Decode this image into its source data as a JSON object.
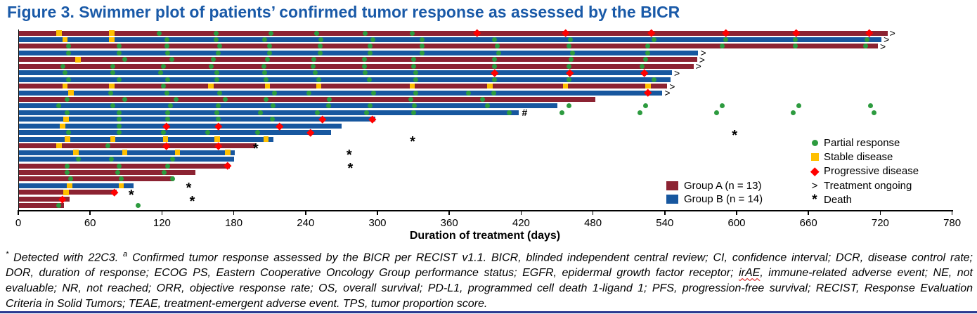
{
  "title": "Figure 3. Swimmer plot of patients’ confirmed tumor response as assessed by the BICR",
  "colors": {
    "title": "#1A5AA8",
    "group_a": "#8C2332",
    "group_b": "#17579F",
    "partial_response": "#2D9B3F",
    "stable_disease": "#FFC000",
    "progressive_disease": "#FF0000",
    "axis": "#000000",
    "bottom_rule": "#2B3990"
  },
  "legend": {
    "groups": [
      {
        "label": "Group A (n = 13)",
        "color_key": "group_a"
      },
      {
        "label": "Group B (n = 14)",
        "color_key": "group_b"
      }
    ],
    "markers": [
      {
        "symbol": "circle",
        "label": "Partial response"
      },
      {
        "symbol": "square",
        "label": "Stable disease"
      },
      {
        "symbol": "diamond",
        "label": "Progressive disease"
      },
      {
        "symbol": ">",
        "label": "Treatment ongoing"
      },
      {
        "symbol": "*",
        "label": "Death"
      }
    ]
  },
  "axis": {
    "label": "Duration of treatment (days)",
    "min": 0,
    "max": 780,
    "tick_interval": 60,
    "ticks": [
      0,
      60,
      120,
      180,
      240,
      300,
      360,
      420,
      480,
      540,
      600,
      660,
      720,
      780
    ]
  },
  "footnote": {
    "line1_sup1": "*",
    "line1_a": " Detected with 22C3. ",
    "line1_sup2": "a",
    "line1_b": " Confirmed tumor response assessed by the BICR per RECIST v1.1. BICR, blinded independent central review; CI, confidence interval; DCR, disease control rate;",
    "line2_a": "DOR, duration of response; ECOG PS, Eastern Cooperative Oncology Group performance status; EGFR, epidermal growth factor receptor; ",
    "line2_irae": "irAE",
    "line2_b": ", immune-related adverse event; NE, not",
    "line3": "evaluable; NR, not reached; ORR, objective response rate; OS, overall survival; PD-L1, programmed cell death 1-ligand 1; PFS, progression-free survival; RECIST, Response Evaluation",
    "line4": "Criteria in Solid Tumors; TEAE, treatment-emergent adverse event. TPS, tumor proportion score."
  },
  "chart_data": {
    "type": "swimmer",
    "title": "Swimmer plot of patients’ confirmed tumor response as assessed by the BICR",
    "xlabel": "Duration of treatment (days)",
    "xlim": [
      0,
      780
    ],
    "x_ticks": [
      0,
      60,
      120,
      180,
      240,
      300,
      360,
      420,
      480,
      540,
      600,
      660,
      720,
      780
    ],
    "legend_position": "right-inside",
    "marker_meanings": {
      "partial_response": "green circle",
      "stable_disease": "yellow square",
      "progressive_disease": "red diamond",
      "ongoing": "> at bar end",
      "death": "* asterisk",
      "hash": "# at bar end"
    },
    "patients": [
      {
        "group": "A",
        "duration_days": 726,
        "ongoing": true,
        "death_day": null,
        "hash_day": null,
        "stable_disease_days": [
          34,
          78
        ],
        "partial_response_days": [
          118,
          165,
          211,
          249,
          290,
          329
        ],
        "progressive_disease_days": [
          383,
          457,
          529,
          591,
          650,
          711
        ]
      },
      {
        "group": "B",
        "duration_days": 721,
        "ongoing": true,
        "death_day": null,
        "hash_day": null,
        "stable_disease_days": [
          39,
          78
        ],
        "partial_response_days": [
          124,
          165,
          206,
          253,
          296,
          337,
          398,
          461,
          531,
          591,
          649,
          709
        ],
        "progressive_disease_days": []
      },
      {
        "group": "A",
        "duration_days": 718,
        "ongoing": true,
        "death_day": null,
        "hash_day": null,
        "stable_disease_days": [],
        "partial_response_days": [
          42,
          84,
          124,
          168,
          210,
          252,
          294,
          337,
          400,
          460,
          526,
          588,
          649,
          708
        ],
        "progressive_disease_days": []
      },
      {
        "group": "B",
        "duration_days": 568,
        "ongoing": true,
        "death_day": null,
        "hash_day": null,
        "stable_disease_days": [],
        "partial_response_days": [
          42,
          84,
          125,
          167,
          210,
          252,
          294,
          337,
          401,
          463,
          526
        ],
        "progressive_disease_days": []
      },
      {
        "group": "A",
        "duration_days": 567,
        "ongoing": true,
        "death_day": null,
        "hash_day": null,
        "stable_disease_days": [
          50
        ],
        "partial_response_days": [
          89,
          128,
          163,
          208,
          247,
          289,
          330,
          398,
          462,
          524
        ],
        "progressive_disease_days": []
      },
      {
        "group": "A",
        "duration_days": 564,
        "ongoing": true,
        "death_day": null,
        "hash_day": null,
        "stable_disease_days": [],
        "partial_response_days": [
          37,
          79,
          121,
          161,
          205,
          246,
          289,
          330,
          398,
          460,
          521
        ],
        "progressive_disease_days": []
      },
      {
        "group": "B",
        "duration_days": 546,
        "ongoing": true,
        "death_day": null,
        "hash_day": null,
        "stable_disease_days": [],
        "partial_response_days": [
          39,
          79,
          119,
          166,
          206,
          248,
          290,
          332
        ],
        "progressive_disease_days": [
          398,
          461,
          523
        ]
      },
      {
        "group": "B",
        "duration_days": 545,
        "ongoing": false,
        "death_day": null,
        "hash_day": null,
        "stable_disease_days": [],
        "partial_response_days": [
          42,
          84,
          125,
          166,
          207,
          251,
          293,
          332,
          398,
          460,
          531
        ],
        "progressive_disease_days": []
      },
      {
        "group": "A",
        "duration_days": 542,
        "ongoing": true,
        "death_day": null,
        "hash_day": null,
        "stable_disease_days": [
          39,
          78,
          161,
          208,
          251,
          329,
          394,
          457,
          526
        ],
        "partial_response_days": [
          121
        ],
        "progressive_disease_days": []
      },
      {
        "group": "B",
        "duration_days": 538,
        "ongoing": true,
        "death_day": null,
        "hash_day": null,
        "stable_disease_days": [
          44
        ],
        "partial_response_days": [
          77,
          124,
          168,
          214,
          243,
          297,
          332,
          376,
          397
        ],
        "progressive_disease_days": [
          526
        ]
      },
      {
        "group": "A",
        "duration_days": 482,
        "ongoing": false,
        "death_day": null,
        "hash_day": null,
        "stable_disease_days": [],
        "partial_response_days": [
          41,
          89,
          132,
          173,
          207,
          260,
          328,
          388
        ],
        "progressive_disease_days": []
      },
      {
        "group": "B",
        "duration_days": 450,
        "ongoing": false,
        "death_day": null,
        "hash_day": null,
        "stable_disease_days": [],
        "partial_response_days": [
          34,
          79,
          127,
          167,
          213,
          259,
          294,
          331,
          392,
          460,
          524,
          588,
          652,
          712
        ],
        "progressive_disease_days": []
      },
      {
        "group": "B",
        "duration_days": 418,
        "ongoing": false,
        "death_day": null,
        "hash_day": 423,
        "stable_disease_days": [],
        "partial_response_days": [
          41,
          84,
          125,
          166,
          202,
          250,
          291,
          330,
          410,
          454,
          519,
          583,
          647,
          715
        ],
        "progressive_disease_days": []
      },
      {
        "group": "B",
        "duration_days": 298,
        "ongoing": false,
        "death_day": null,
        "hash_day": null,
        "stable_disease_days": [
          40
        ],
        "partial_response_days": [
          84,
          125,
          167,
          212
        ],
        "progressive_disease_days": [
          254,
          296
        ]
      },
      {
        "group": "B",
        "duration_days": 270,
        "ongoing": false,
        "death_day": null,
        "hash_day": null,
        "stable_disease_days": [
          37
        ],
        "partial_response_days": [
          84
        ],
        "progressive_disease_days": [
          124,
          167,
          218
        ]
      },
      {
        "group": "B",
        "duration_days": 261,
        "ongoing": false,
        "death_day": 599,
        "hash_day": null,
        "stable_disease_days": [],
        "partial_response_days": [
          42,
          84,
          121,
          158,
          200
        ],
        "progressive_disease_days": [
          244
        ]
      },
      {
        "group": "B",
        "duration_days": 213,
        "ongoing": false,
        "death_day": 330,
        "hash_day": null,
        "stable_disease_days": [
          41,
          79,
          123,
          166,
          207
        ],
        "partial_response_days": [],
        "progressive_disease_days": []
      },
      {
        "group": "A",
        "duration_days": 198,
        "ongoing": false,
        "death_day": 199,
        "hash_day": null,
        "stable_disease_days": [
          34
        ],
        "partial_response_days": [
          75
        ],
        "progressive_disease_days": [
          124,
          167
        ]
      },
      {
        "group": "B",
        "duration_days": 181,
        "ongoing": false,
        "death_day": 277,
        "hash_day": null,
        "stable_disease_days": [
          48,
          89,
          133,
          175
        ],
        "partial_response_days": [],
        "progressive_disease_days": []
      },
      {
        "group": "B",
        "duration_days": 180,
        "ongoing": false,
        "death_day": null,
        "hash_day": null,
        "stable_disease_days": [],
        "partial_response_days": [
          50,
          78,
          129
        ],
        "progressive_disease_days": []
      },
      {
        "group": "A",
        "duration_days": 177,
        "ongoing": false,
        "death_day": 278,
        "hash_day": null,
        "stable_disease_days": [],
        "partial_response_days": [
          41,
          84,
          125
        ],
        "progressive_disease_days": [
          175
        ]
      },
      {
        "group": "A",
        "duration_days": 148,
        "ongoing": false,
        "death_day": null,
        "hash_day": null,
        "stable_disease_days": [],
        "partial_response_days": [
          41,
          83,
          122
        ],
        "progressive_disease_days": []
      },
      {
        "group": "A",
        "duration_days": 130,
        "ongoing": false,
        "death_day": null,
        "hash_day": null,
        "stable_disease_days": [],
        "partial_response_days": [
          44,
          86,
          129
        ],
        "progressive_disease_days": []
      },
      {
        "group": "B",
        "duration_days": 96,
        "ongoing": false,
        "death_day": 143,
        "hash_day": null,
        "stable_disease_days": [
          43,
          86
        ],
        "partial_response_days": [],
        "progressive_disease_days": []
      },
      {
        "group": "A",
        "duration_days": 82,
        "ongoing": false,
        "death_day": 95,
        "hash_day": null,
        "stable_disease_days": [
          40
        ],
        "partial_response_days": [],
        "progressive_disease_days": [
          80
        ]
      },
      {
        "group": "A",
        "duration_days": 43,
        "ongoing": false,
        "death_day": 146,
        "hash_day": null,
        "stable_disease_days": [],
        "partial_response_days": [],
        "progressive_disease_days": [
          37
        ]
      },
      {
        "group": "A",
        "duration_days": 38,
        "ongoing": false,
        "death_day": null,
        "hash_day": null,
        "stable_disease_days": [],
        "partial_response_days": [
          34,
          100
        ],
        "progressive_disease_days": []
      }
    ]
  }
}
